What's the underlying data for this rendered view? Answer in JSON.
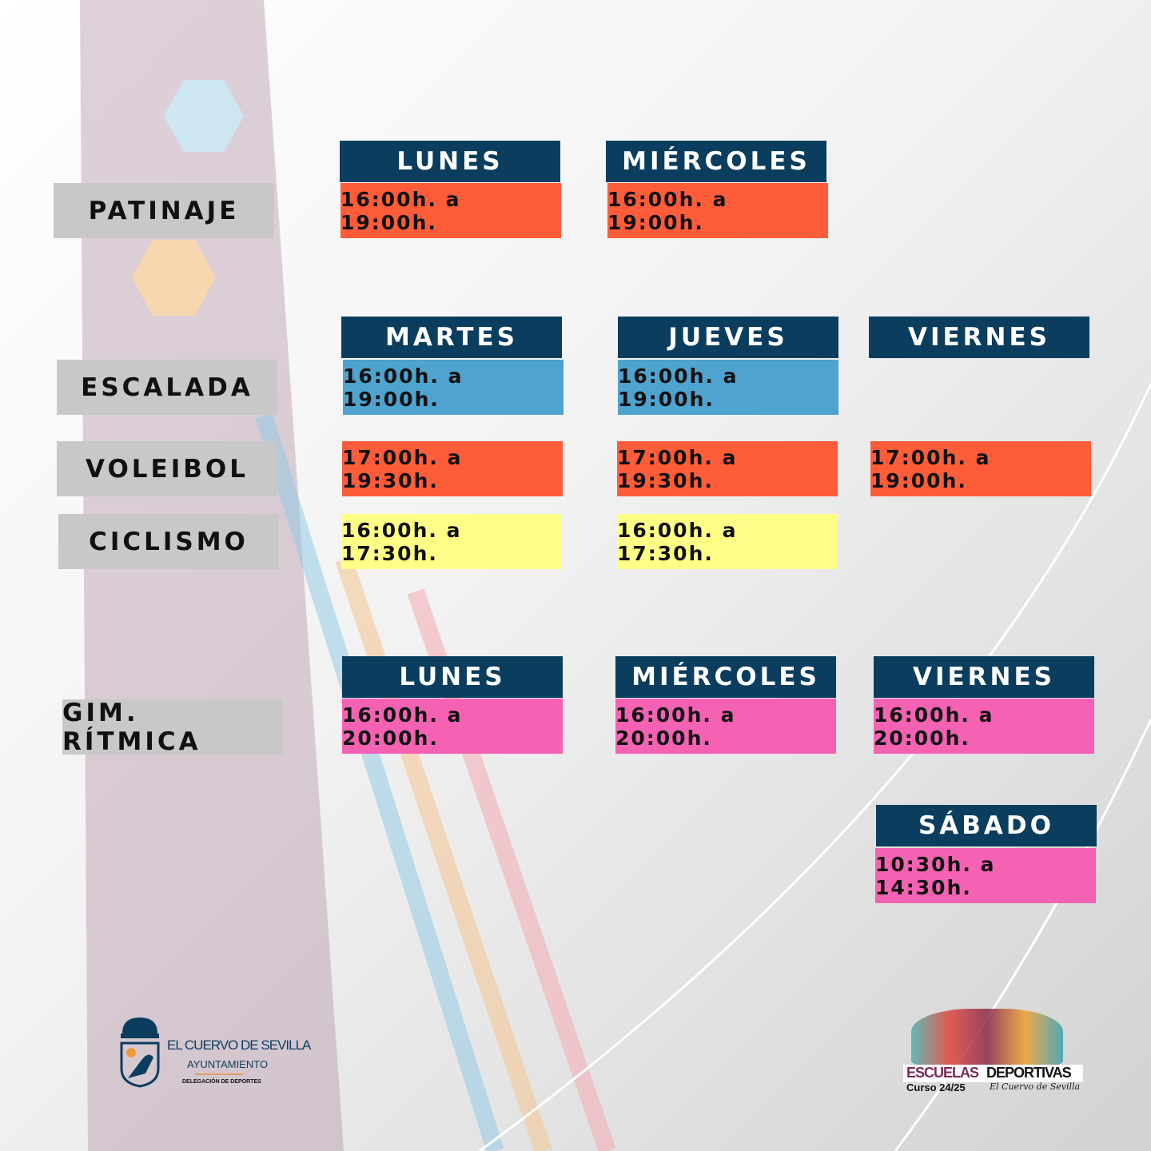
{
  "colors": {
    "header": "#0b3d5e",
    "label": "#c8c8c8",
    "patinaje": "#ff5c3a",
    "escalada": "#4ea3cf",
    "voleibol": "#ff5c3a",
    "ciclismo": "#ffff88",
    "gimnasia": "#f562b4"
  },
  "patinaje": {
    "label": "PATINAJE",
    "days": [
      "LUNES",
      "MIÉRCOLES"
    ],
    "times": [
      "16:00h. a 19:00h.",
      "16:00h. a 19:00h."
    ]
  },
  "group2": {
    "days": [
      "MARTES",
      "JUEVES",
      "VIERNES"
    ]
  },
  "escalada": {
    "label": "ESCALADA",
    "times": [
      "16:00h. a 19:00h.",
      "16:00h. a 19:00h."
    ]
  },
  "voleibol": {
    "label": "VOLEIBOL",
    "times": [
      "17:00h. a 19:30h.",
      "17:00h. a 19:30h.",
      "17:00h. a 19:00h."
    ]
  },
  "ciclismo": {
    "label": "CICLISMO",
    "times": [
      "16:00h. a 17:30h.",
      "16:00h. a 17:30h."
    ]
  },
  "gimnasia": {
    "label": "GIM. RÍTMICA",
    "days": [
      "LUNES",
      "MIÉRCOLES",
      "VIERNES",
      "SÁBADO"
    ],
    "times": [
      "16:00h. a 20:00h.",
      "16:00h. a 20:00h.",
      "16:00h. a 20:00h.",
      "10:30h. a 14:30h."
    ]
  },
  "logos": {
    "ayuntamiento": {
      "line1": "EL CUERVO DE SEVILLA",
      "line2": "AYUNTAMIENTO",
      "line3": "DELEGACIÓN DE DEPORTES"
    },
    "escuelas": {
      "word1": "ESCUELAS",
      "word2": "DEPORTIVAS",
      "course": "Curso 24/25",
      "signature": "El Cuervo de Sevilla"
    }
  }
}
